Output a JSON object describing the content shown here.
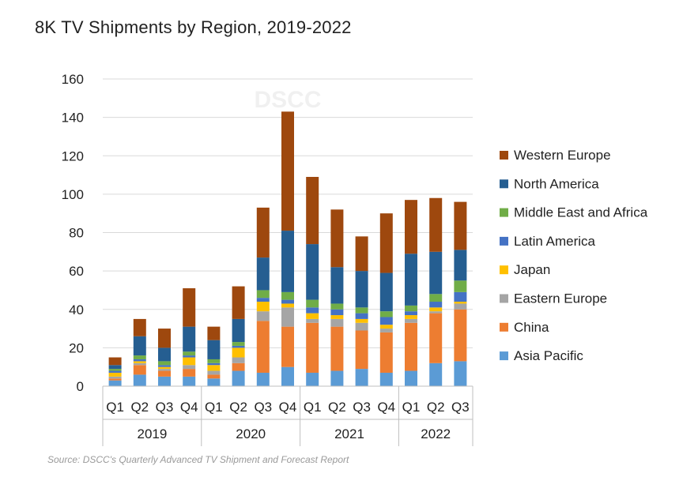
{
  "chart_data": {
    "type": "bar",
    "stacked": true,
    "title": "8K TV Shipments by Region, 2019-2022",
    "watermark": "DSCC",
    "source": "Source: DSCC's Quarterly Advanced TV Shipment and Forecast Report",
    "xlabel": "",
    "ylabel": "",
    "ylim": [
      0,
      160
    ],
    "yticks": [
      "0",
      "20",
      "40",
      "60",
      "80",
      "100",
      "120",
      "140",
      "160"
    ],
    "grid": true,
    "legend_position": "right",
    "years": [
      "2019",
      "2020",
      "2021",
      "2022"
    ],
    "categories": [
      "Q1",
      "Q2",
      "Q3",
      "Q4",
      "Q1",
      "Q2",
      "Q3",
      "Q4",
      "Q1",
      "Q2",
      "Q3",
      "Q4",
      "Q1",
      "Q2",
      "Q3"
    ],
    "series": [
      {
        "name": "Asia Pacific",
        "color": "#5B9BD5",
        "values": [
          3,
          6,
          5,
          5,
          4,
          8,
          7,
          10,
          7,
          8,
          9,
          7,
          8,
          12,
          13
        ]
      },
      {
        "name": "China",
        "color": "#ED7D31",
        "values": [
          1,
          5,
          3,
          4,
          2,
          4,
          27,
          21,
          26,
          23,
          20,
          21,
          25,
          26,
          27
        ]
      },
      {
        "name": "Eastern Europe",
        "color": "#A5A5A5",
        "values": [
          1,
          1,
          1,
          2,
          2,
          3,
          5,
          10,
          2,
          4,
          4,
          2,
          2,
          1,
          3
        ]
      },
      {
        "name": "Japan",
        "color": "#FFC000",
        "values": [
          2,
          1,
          1,
          4,
          3,
          5,
          5,
          2,
          3,
          2,
          2,
          2,
          2,
          2,
          1
        ]
      },
      {
        "name": "Latin America",
        "color": "#4472C4",
        "values": [
          1,
          1,
          1,
          1,
          1,
          1,
          2,
          2,
          3,
          3,
          3,
          4,
          2,
          3,
          5
        ]
      },
      {
        "name": "Middle East and Africa",
        "color": "#70AD47",
        "values": [
          1,
          2,
          2,
          2,
          2,
          2,
          4,
          4,
          4,
          3,
          3,
          3,
          3,
          4,
          6
        ]
      },
      {
        "name": "North America",
        "color": "#255E91",
        "values": [
          2,
          10,
          7,
          13,
          10,
          12,
          17,
          32,
          29,
          19,
          19,
          20,
          27,
          22,
          16
        ]
      },
      {
        "name": "Western Europe",
        "color": "#9E480E",
        "values": [
          4,
          9,
          10,
          20,
          7,
          17,
          26,
          62,
          35,
          30,
          18,
          31,
          28,
          28,
          25
        ]
      }
    ]
  }
}
